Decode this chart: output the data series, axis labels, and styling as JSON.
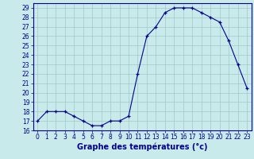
{
  "hours": [
    0,
    1,
    2,
    3,
    4,
    5,
    6,
    7,
    8,
    9,
    10,
    11,
    12,
    13,
    14,
    15,
    16,
    17,
    18,
    19,
    20,
    21,
    22,
    23
  ],
  "temps": [
    17,
    18,
    18,
    18,
    17.5,
    17,
    16.5,
    16.5,
    17,
    17,
    17.5,
    22,
    26,
    27,
    28.5,
    29,
    29,
    29,
    28.5,
    28,
    27.5,
    25.5,
    23,
    20.5
  ],
  "line_color": "#00008B",
  "marker": "+",
  "bg_color": "#c8eaea",
  "grid_color": "#a0c8c8",
  "xlabel": "Graphe des températures (°c)",
  "ylim": [
    16,
    29.5
  ],
  "xlim": [
    -0.5,
    23.5
  ],
  "yticks": [
    16,
    17,
    18,
    19,
    20,
    21,
    22,
    23,
    24,
    25,
    26,
    27,
    28,
    29
  ],
  "xticks": [
    0,
    1,
    2,
    3,
    4,
    5,
    6,
    7,
    8,
    9,
    10,
    11,
    12,
    13,
    14,
    15,
    16,
    17,
    18,
    19,
    20,
    21,
    22,
    23
  ],
  "tick_fontsize": 5.5,
  "label_fontsize": 7
}
